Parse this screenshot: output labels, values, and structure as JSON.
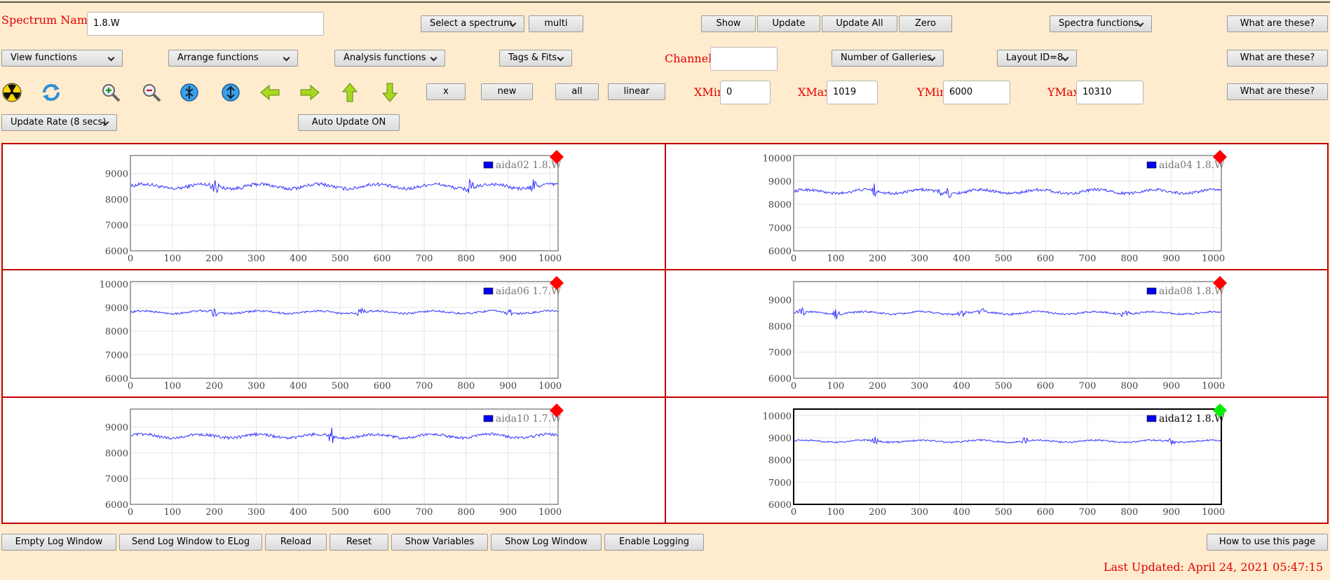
{
  "header": {
    "spectrum_name_label": "Spectrum Name:",
    "spectrum_name_value": "1.8.W",
    "select_spectrum": "Select a spectrum",
    "multi": "multi",
    "show": "Show",
    "update": "Update",
    "update_all": "Update All",
    "zero": "Zero",
    "spectra_functions": "Spectra functions",
    "what_are_these_1": "What are these?"
  },
  "row2": {
    "view_functions": "View functions",
    "arrange_functions": "Arrange functions",
    "analysis_functions": "Analysis functions",
    "tags_fits": "Tags & Fits",
    "channel_label": "Channel:",
    "channel_value": "",
    "number_of_galleries": "Number of Galleries",
    "layout_id": "Layout ID=8",
    "what_are_these_2": "What are these?"
  },
  "row3": {
    "icons": [
      "radiation-icon",
      "refresh-icon",
      "zoom-in-icon",
      "zoom-out-icon",
      "expand-y-icon",
      "compress-y-icon",
      "left-arrow-icon",
      "right-arrow-icon",
      "up-arrow-icon",
      "down-arrow-icon"
    ],
    "x": "x",
    "new": "new",
    "all": "all",
    "linear": "linear",
    "xmin_label": "XMin",
    "xmin_value": "0",
    "xmax_label": "XMax",
    "xmax_value": "1019",
    "ymin_label": "YMin",
    "ymin_value": "6000",
    "ymax_label": "YMax",
    "ymax_value": "10310",
    "what_are_these_3": "What are these?"
  },
  "row4": {
    "update_rate": "Update Rate (8 secs)",
    "auto_update": "Auto Update ON"
  },
  "footer": {
    "empty_log": "Empty Log Window",
    "send_log": "Send Log Window to ELog",
    "reload": "Reload",
    "reset": "Reset",
    "show_variables": "Show Variables",
    "show_log": "Show Log Window",
    "enable_logging": "Enable Logging",
    "how_to_use": "How to use this page",
    "last_updated": "Last Updated: April 24, 2021 05:47:15"
  },
  "colors": {
    "label_red": "#e00000",
    "series_blue": "#3333ff",
    "status_red": "#ff0000",
    "status_green": "#00ee00",
    "panel_border": "#c00000"
  },
  "chart_data": [
    {
      "type": "line",
      "legend": "aida02 1.8.W",
      "xlim": [
        0,
        1019
      ],
      "ylim": [
        6000,
        9700
      ],
      "yticks": [
        6000,
        7000,
        8000,
        9000
      ],
      "xticks": [
        0,
        100,
        200,
        300,
        400,
        500,
        600,
        700,
        800,
        900,
        1000
      ],
      "baseline": 8500,
      "noise": 110,
      "spikes": [
        200,
        810,
        960
      ],
      "status": "red",
      "selected": false
    },
    {
      "type": "line",
      "legend": "aida04 1.8.W",
      "xlim": [
        0,
        1019
      ],
      "ylim": [
        6000,
        10100
      ],
      "yticks": [
        6000,
        7000,
        8000,
        9000,
        10000
      ],
      "xticks": [
        0,
        100,
        200,
        300,
        400,
        500,
        600,
        700,
        800,
        900,
        1000
      ],
      "baseline": 8550,
      "noise": 100,
      "spikes": [
        190,
        355,
        365
      ],
      "status": "red",
      "selected": false
    },
    {
      "type": "line",
      "legend": "aida06 1.7.W",
      "xlim": [
        0,
        1019
      ],
      "ylim": [
        6000,
        10100
      ],
      "yticks": [
        6000,
        7000,
        8000,
        9000,
        10000
      ],
      "xticks": [
        0,
        100,
        200,
        300,
        400,
        500,
        600,
        700,
        800,
        900,
        1000
      ],
      "baseline": 8800,
      "noise": 70,
      "spikes": [
        200,
        550,
        900
      ],
      "status": "red",
      "selected": false
    },
    {
      "type": "line",
      "legend": "aida08 1.8.W",
      "xlim": [
        0,
        1019
      ],
      "ylim": [
        6000,
        9700
      ],
      "yticks": [
        6000,
        7000,
        8000,
        9000
      ],
      "xticks": [
        0,
        100,
        200,
        300,
        400,
        500,
        600,
        700,
        800,
        900,
        1000
      ],
      "baseline": 8500,
      "noise": 60,
      "spikes": [
        20,
        100,
        400,
        450,
        790
      ],
      "status": "red",
      "selected": false
    },
    {
      "type": "line",
      "legend": "aida10 1.7.W",
      "xlim": [
        0,
        1019
      ],
      "ylim": [
        6000,
        9700
      ],
      "yticks": [
        6000,
        7000,
        8000,
        9000
      ],
      "xticks": [
        0,
        100,
        200,
        300,
        400,
        500,
        600,
        700,
        800,
        900,
        1000
      ],
      "baseline": 8650,
      "noise": 90,
      "spikes": [
        480
      ],
      "status": "red",
      "selected": false
    },
    {
      "type": "line",
      "legend": "aida12 1.8.W",
      "xlim": [
        0,
        1019
      ],
      "ylim": [
        6000,
        10300
      ],
      "yticks": [
        6000,
        7000,
        8000,
        9000,
        10000
      ],
      "xticks": [
        0,
        100,
        200,
        300,
        400,
        500,
        600,
        700,
        800,
        900,
        1000
      ],
      "baseline": 8850,
      "noise": 60,
      "spikes": [
        195,
        550,
        900
      ],
      "status": "green",
      "selected": true
    }
  ]
}
